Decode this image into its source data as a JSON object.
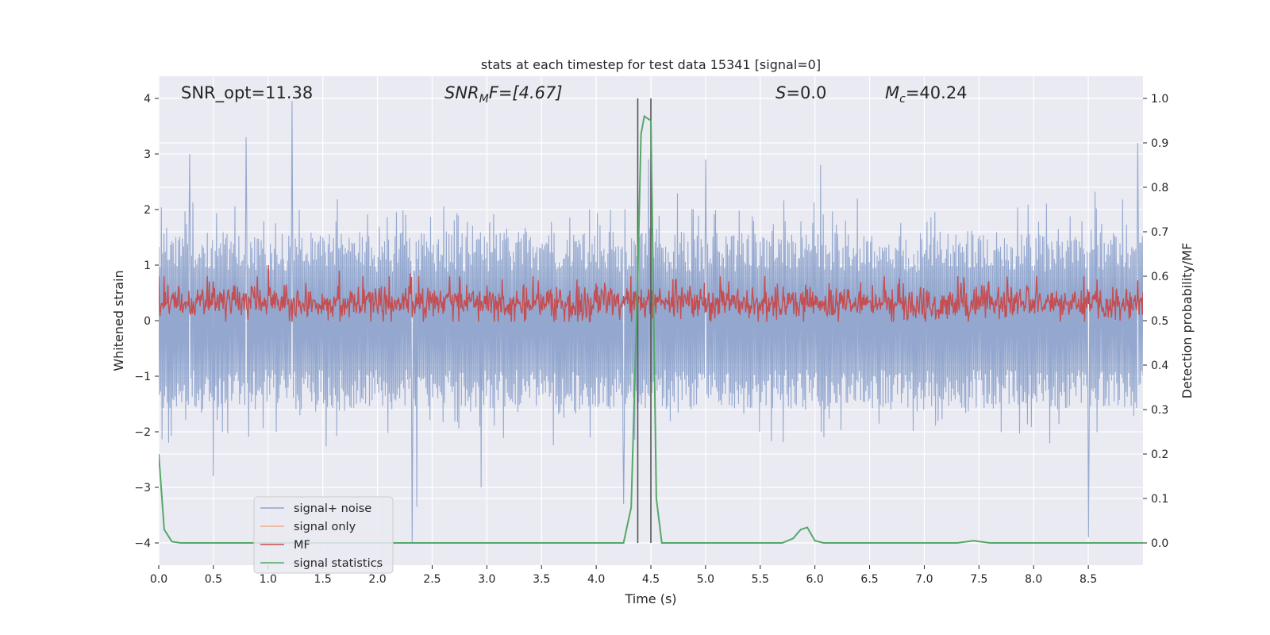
{
  "chart_data": {
    "type": "line",
    "title": "stats at each timestep for test data 15341 [signal=0]",
    "xlabel": "Time (s)",
    "ylabel_left": "Whitened strain",
    "ylabel_right": "Detection probability/MF",
    "xlim": [
      0.0,
      9.0
    ],
    "ylim_left": [
      -4.4,
      4.4
    ],
    "ylim_right": [
      -0.05,
      1.05
    ],
    "xticks": [
      0.0,
      0.5,
      1.0,
      1.5,
      2.0,
      2.5,
      3.0,
      3.5,
      4.0,
      4.5,
      5.0,
      5.5,
      6.0,
      6.5,
      7.0,
      7.5,
      8.0,
      8.5
    ],
    "xtick_labels": [
      "0.0",
      "0.5",
      "1.0",
      "1.5",
      "2.0",
      "2.5",
      "3.0",
      "3.5",
      "4.0",
      "4.5",
      "5.0",
      "5.5",
      "6.0",
      "6.5",
      "7.0",
      "7.5",
      "8.0",
      "8.5"
    ],
    "yticks_left": [
      4,
      3,
      2,
      1,
      0,
      -1,
      -2,
      -3,
      -4
    ],
    "ytick_labels_left": [
      "4",
      "3",
      "2",
      "1",
      "0",
      "−1",
      "−2",
      "−3",
      "−4"
    ],
    "yticks_right": [
      1.0,
      0.9,
      0.8,
      0.7,
      0.6,
      0.5,
      0.4,
      0.3,
      0.2,
      0.1,
      0.0
    ],
    "ytick_labels_right": [
      "1.0",
      "0.9",
      "0.8",
      "0.7",
      "0.6",
      "0.5",
      "0.4",
      "0.3",
      "0.2",
      "0.1",
      "0.0"
    ],
    "annotations": {
      "snr_opt": "SNR_opt=11.38",
      "snr_mf_main": "SNR",
      "snr_mf_sub": "M",
      "snr_mf_rest": "F=[4.67]",
      "s_main": "S",
      "s_rest": "=0.0",
      "mc_main": "M",
      "mc_sub": "c",
      "mc_rest": "=40.24"
    },
    "vlines_x": [
      4.38,
      4.5
    ],
    "legend": [
      {
        "label": "signal+ noise",
        "color": "#8fa4cc"
      },
      {
        "label": "signal only",
        "color": "#f2a98c"
      },
      {
        "label": "MF",
        "color": "#c44e52"
      },
      {
        "label": "signal statistics",
        "color": "#55a868"
      }
    ],
    "series": [
      {
        "name": "signal statistics",
        "axis": "right",
        "color": "#55a868",
        "x": [
          0.0,
          0.05,
          0.12,
          0.2,
          0.5,
          1.0,
          1.5,
          2.0,
          2.5,
          3.0,
          3.5,
          4.0,
          4.25,
          4.32,
          4.38,
          4.41,
          4.44,
          4.5,
          4.55,
          4.6,
          4.8,
          5.0,
          5.5,
          5.7,
          5.8,
          5.87,
          5.93,
          6.0,
          6.08,
          6.2,
          7.0,
          7.3,
          7.45,
          7.6,
          8.0,
          8.5,
          9.0
        ],
        "y": [
          0.2,
          0.03,
          0.003,
          0.0,
          0.0,
          0.0,
          0.0,
          0.0,
          0.0,
          0.0,
          0.0,
          0.0,
          0.0,
          0.08,
          0.6,
          0.92,
          0.96,
          0.95,
          0.1,
          0.0,
          0.0,
          0.0,
          0.0,
          0.0,
          0.01,
          0.03,
          0.035,
          0.005,
          0.0,
          0.0,
          0.0,
          0.0,
          0.005,
          0.0,
          0.0,
          0.0,
          0.0
        ]
      },
      {
        "name": "signal+ noise",
        "axis": "left",
        "color": "#8fa4cc",
        "mode": "dense-noise",
        "points": 1500,
        "band": [
          -1.6,
          1.6
        ],
        "extremes": [
          [
            0.28,
            3.0
          ],
          [
            0.8,
            3.3
          ],
          [
            1.22,
            3.95
          ],
          [
            2.32,
            -4.0
          ],
          [
            2.36,
            -3.35
          ],
          [
            2.95,
            -3.0
          ],
          [
            4.25,
            -3.3
          ],
          [
            4.48,
            2.9
          ],
          [
            8.5,
            -3.9
          ],
          [
            8.95,
            3.2
          ],
          [
            0.5,
            -2.8
          ],
          [
            5.0,
            2.9
          ],
          [
            6.05,
            2.8
          ]
        ]
      },
      {
        "name": "MF",
        "axis": "left",
        "color": "#c44e52",
        "mode": "dense-noise",
        "points": 1500,
        "center": 0.33,
        "band": [
          0.0,
          0.75
        ],
        "extremes": [
          [
            1.0,
            1.0
          ],
          [
            1.65,
            0.9
          ],
          [
            2.3,
            0.85
          ]
        ]
      }
    ]
  }
}
